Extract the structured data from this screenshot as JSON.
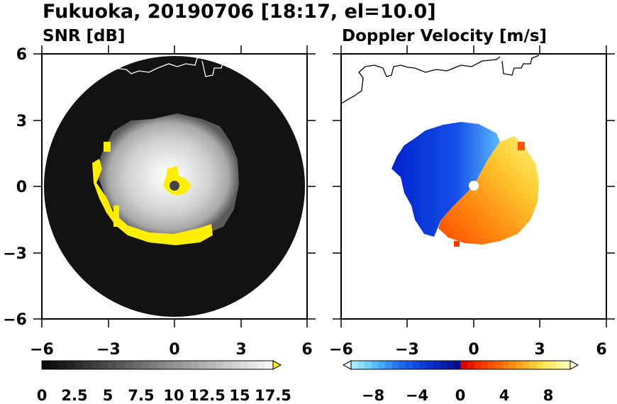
{
  "figure": {
    "title": "Fukuoka, 20190706 [18:17, el=10.0]"
  },
  "chart_data": [
    {
      "type": "heatmap",
      "title": "SNR [dB]",
      "projection": "polar PPI (radar scan)",
      "xlim": [
        -6,
        6
      ],
      "ylim": [
        -6,
        6
      ],
      "xticks": [
        -6,
        -3,
        0,
        3,
        6
      ],
      "yticks": [
        -6,
        -3,
        0,
        3,
        6
      ],
      "xtick_labels": [
        "−6",
        "−3",
        "0",
        "3",
        "6"
      ],
      "ytick_labels": [
        "6",
        "3",
        "0",
        "−3",
        "−6"
      ],
      "scan_radius": 5.9,
      "echo_extent_approx": {
        "west": -3.6,
        "east": 2.8,
        "north": 2.8,
        "south": -3.2
      },
      "colorbar": {
        "min": 0,
        "max": 17.5,
        "tick_values": [
          0,
          2.5,
          5,
          7.5,
          10,
          12.5,
          15,
          17.5
        ],
        "tick_labels": [
          "0",
          "2.5",
          "5",
          "7.5",
          "10",
          "12.5",
          "15",
          "17.5"
        ],
        "colormap": "greyscale black→white",
        "over_color": "#ffee00",
        "extend": "max"
      },
      "colors": {
        "background": "#101010",
        "saturated": "#ffee00",
        "radar_site": "#444444"
      }
    },
    {
      "type": "heatmap",
      "title": "Doppler Velocity [m/s]",
      "projection": "polar PPI (radar scan)",
      "xlim": [
        -6,
        6
      ],
      "ylim": [
        -6,
        6
      ],
      "xticks": [
        -6,
        -3,
        0,
        3,
        6
      ],
      "xtick_labels": [
        "−6",
        "−3",
        "0",
        "3",
        "6"
      ],
      "echo_extent_approx": {
        "west": -3.7,
        "east": 2.8,
        "north": 2.8,
        "south": -3.1
      },
      "colorbar": {
        "min": -10,
        "max": 10,
        "tick_values": [
          -8,
          -4,
          0,
          4,
          8
        ],
        "tick_labels": [
          "−8",
          "−4",
          "0",
          "4",
          "8"
        ],
        "colormap": "blue (toward) → red/yellow (away)",
        "extend": "both"
      },
      "colors": {
        "negative": "#1133dd",
        "positive": "#ff6600",
        "max": "#ffffaa"
      }
    }
  ]
}
